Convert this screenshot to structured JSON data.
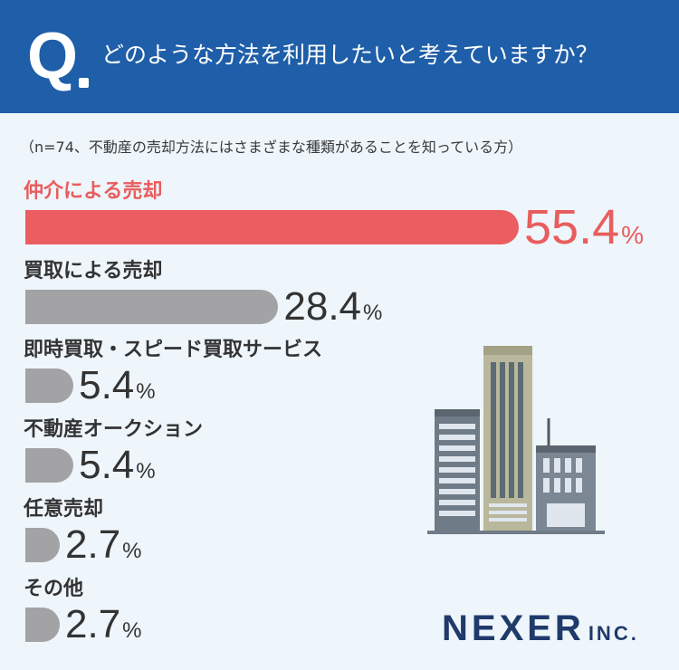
{
  "header": {
    "q_letter": "Q",
    "question": "どのような方法を利用したいと考えていますか？"
  },
  "note": "（n=74、不動産の売却方法にはさまざまな種類があることを知っている方）",
  "logo": {
    "main": "NEXER",
    "sub": "INC."
  },
  "colors": {
    "header": "#1f5ea8",
    "highlight": "#ec5d61",
    "bar": "#a3a3a6",
    "background": "#eef5fb"
  },
  "chart_data": {
    "type": "bar",
    "orientation": "horizontal",
    "unit": "%",
    "categories": [
      "仲介による売却",
      "買取による売却",
      "即時買取・スピード買取サービス",
      "不動産オークション",
      "任意売却",
      "その他"
    ],
    "values": [
      55.4,
      28.4,
      5.4,
      5.4,
      2.7,
      2.7
    ],
    "value_labels": [
      "55.4",
      "28.4",
      "5.4",
      "5.4",
      "2.7",
      "2.7"
    ],
    "highlight_index": 0
  }
}
